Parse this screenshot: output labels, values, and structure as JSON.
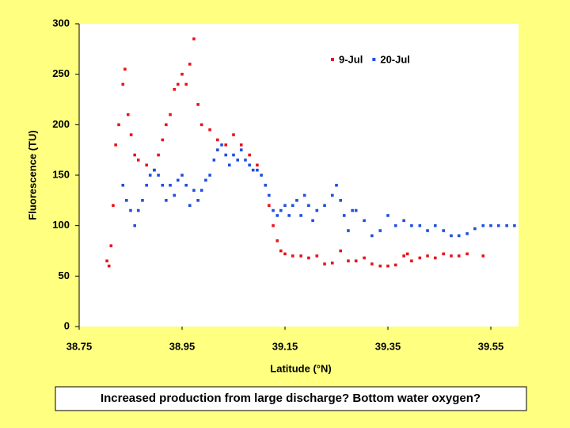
{
  "chart_data": {
    "type": "scatter",
    "xlabel": "Latitude (°N)",
    "ylabel": "Fluorescence (TU)",
    "caption": "Increased production from large discharge? Bottom water oxygen?",
    "xlim": [
      38.75,
      39.6
    ],
    "xticks": [
      38.75,
      38.95,
      39.15,
      39.35,
      39.55
    ],
    "ylim": [
      0,
      300
    ],
    "yticks": [
      0,
      50,
      100,
      150,
      200,
      250,
      300
    ],
    "legend": "upper right",
    "series": [
      {
        "name": "9-Jul",
        "color": "#e8141a",
        "x": [
          38.804,
          38.808,
          38.812,
          38.816,
          38.821,
          38.827,
          38.835,
          38.839,
          38.845,
          38.851,
          38.858,
          38.865,
          38.881,
          38.896,
          38.904,
          38.912,
          38.919,
          38.927,
          38.935,
          38.942,
          38.95,
          38.958,
          38.965,
          38.973,
          38.981,
          38.988,
          39.004,
          39.019,
          39.035,
          39.05,
          39.065,
          39.081,
          39.096,
          39.112,
          39.119,
          39.127,
          39.135,
          39.142,
          39.15,
          39.165,
          39.181,
          39.196,
          39.212,
          39.227,
          39.242,
          39.258,
          39.273,
          39.288,
          39.304,
          39.319,
          39.335,
          39.35,
          39.365,
          39.381,
          39.388,
          39.396,
          39.412,
          39.427,
          39.442,
          39.458,
          39.473,
          39.488,
          39.504,
          39.535
        ],
        "values": [
          65,
          60,
          80,
          120,
          180,
          200,
          240,
          255,
          210,
          190,
          170,
          165,
          160,
          155,
          170,
          185,
          200,
          210,
          235,
          240,
          250,
          240,
          260,
          285,
          220,
          200,
          195,
          185,
          180,
          190,
          180,
          170,
          160,
          140,
          120,
          100,
          85,
          75,
          72,
          70,
          70,
          68,
          70,
          62,
          63,
          75,
          65,
          65,
          68,
          62,
          60,
          60,
          61,
          70,
          72,
          65,
          68,
          70,
          68,
          72,
          70,
          70,
          72,
          70
        ]
      },
      {
        "name": "20-Jul",
        "color": "#1f4fe0",
        "x": [
          38.835,
          38.842,
          38.85,
          38.858,
          38.865,
          38.873,
          38.881,
          38.888,
          38.896,
          38.904,
          38.912,
          38.919,
          38.927,
          38.935,
          38.942,
          38.95,
          38.958,
          38.965,
          38.973,
          38.981,
          38.988,
          38.996,
          39.004,
          39.012,
          39.019,
          39.027,
          39.035,
          39.042,
          39.05,
          39.058,
          39.065,
          39.073,
          39.081,
          39.088,
          39.096,
          39.104,
          39.112,
          39.119,
          39.127,
          39.135,
          39.142,
          39.15,
          39.158,
          39.165,
          39.173,
          39.181,
          39.188,
          39.196,
          39.204,
          39.212,
          39.227,
          39.242,
          39.25,
          39.258,
          39.265,
          39.273,
          39.281,
          39.288,
          39.304,
          39.319,
          39.335,
          39.35,
          39.365,
          39.381,
          39.396,
          39.412,
          39.427,
          39.442,
          39.458,
          39.473,
          39.488,
          39.504,
          39.519,
          39.535,
          39.55,
          39.565,
          39.581,
          39.596
        ],
        "values": [
          140,
          125,
          115,
          100,
          115,
          125,
          140,
          150,
          155,
          150,
          140,
          125,
          140,
          130,
          145,
          150,
          140,
          120,
          135,
          125,
          135,
          145,
          150,
          165,
          175,
          180,
          170,
          160,
          170,
          165,
          175,
          165,
          160,
          155,
          155,
          150,
          140,
          130,
          115,
          110,
          115,
          120,
          110,
          120,
          125,
          110,
          130,
          120,
          105,
          115,
          120,
          130,
          140,
          125,
          110,
          95,
          115,
          115,
          105,
          90,
          95,
          110,
          100,
          105,
          100,
          100,
          95,
          100,
          95,
          90,
          90,
          92,
          97,
          100,
          100,
          100,
          100,
          100
        ]
      }
    ]
  }
}
